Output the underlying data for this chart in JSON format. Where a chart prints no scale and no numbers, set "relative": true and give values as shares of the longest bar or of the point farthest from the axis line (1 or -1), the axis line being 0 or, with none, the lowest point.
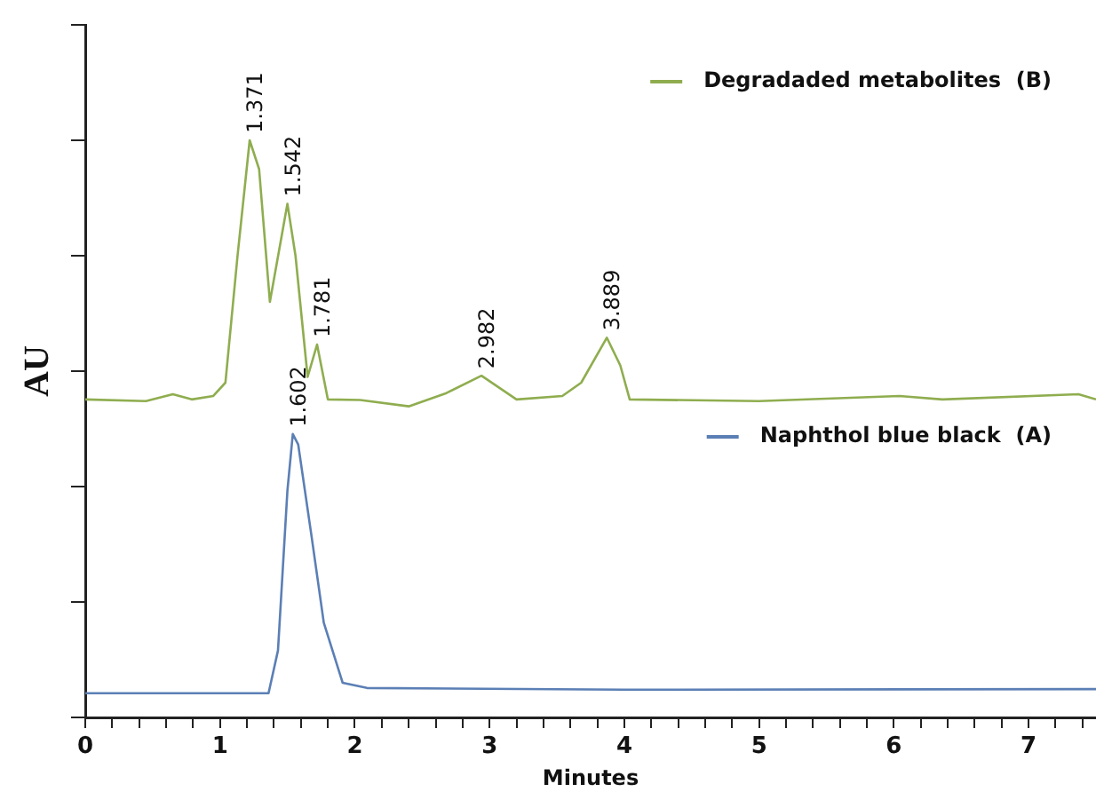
{
  "chart_data": {
    "type": "line",
    "relative": true,
    "xlabel": "Minutes",
    "ylabel": "AU",
    "xlim": [
      0,
      7.5
    ],
    "xticks": [
      0,
      {
        "value": 0.2,
        "label": null
      },
      {
        "value": 0.4,
        "label": null
      },
      {
        "value": 0.6,
        "label": null
      },
      {
        "value": 0.8,
        "label": null
      },
      1,
      {
        "value": 1.2,
        "label": null
      },
      {
        "value": 1.4,
        "label": null
      },
      {
        "value": 1.6,
        "label": null
      },
      {
        "value": 1.8,
        "label": null
      },
      2,
      {
        "value": 2.2,
        "label": null
      },
      {
        "value": 2.4,
        "label": null
      },
      {
        "value": 2.6,
        "label": null
      },
      {
        "value": 2.8,
        "label": null
      },
      3,
      {
        "value": 3.2,
        "label": null
      },
      {
        "value": 3.4,
        "label": null
      },
      {
        "value": 3.6,
        "label": null
      },
      {
        "value": 3.8,
        "label": null
      },
      4,
      {
        "value": 4.2,
        "label": null
      },
      {
        "value": 4.4,
        "label": null
      },
      {
        "value": 4.6,
        "label": null
      },
      {
        "value": 4.8,
        "label": null
      },
      5,
      {
        "value": 5.2,
        "label": null
      },
      {
        "value": 5.4,
        "label": null
      },
      {
        "value": 5.6,
        "label": null
      },
      {
        "value": 5.8,
        "label": null
      },
      6,
      {
        "value": 6.2,
        "label": null
      },
      {
        "value": 6.4,
        "label": null
      },
      {
        "value": 6.6,
        "label": null
      },
      {
        "value": 6.8,
        "label": null
      },
      7,
      {
        "value": 7.2,
        "label": null
      },
      {
        "value": 7.4,
        "label": null
      }
    ],
    "series": [
      {
        "name": "Degradaded metabolites  (B)",
        "color": "#8fad4f",
        "x": [
          0,
          0.45,
          0.65,
          0.79,
          0.95,
          1.04,
          1.13,
          1.22,
          1.29,
          1.37,
          1.5,
          1.56,
          1.65,
          1.72,
          1.8,
          2.04,
          2.4,
          2.68,
          2.94,
          3.2,
          3.54,
          3.68,
          3.87,
          3.97,
          4.04,
          5.0,
          6.04,
          6.36,
          7.37,
          7.5
        ],
        "values": [
          0.551,
          0.548,
          0.56,
          0.551,
          0.557,
          0.58,
          0.8,
          1.0,
          0.95,
          0.72,
          0.89,
          0.8,
          0.59,
          0.646,
          0.551,
          0.55,
          0.539,
          0.562,
          0.592,
          0.551,
          0.557,
          0.58,
          0.658,
          0.61,
          0.551,
          0.548,
          0.557,
          0.551,
          0.56,
          0.551
        ]
      },
      {
        "name": "Naphthol blue black  (A)",
        "color": "#5b7fb5",
        "x": [
          0,
          1.36,
          1.43,
          1.5,
          1.54,
          1.58,
          1.68,
          1.77,
          1.91,
          2.09,
          4.0,
          7.5
        ],
        "values": [
          0.042,
          0.042,
          0.116,
          0.393,
          0.491,
          0.473,
          0.3125,
          0.164,
          0.06,
          0.051,
          0.048,
          0.049
        ]
      }
    ],
    "annotations": [
      {
        "text": "1.371",
        "x": 1.22,
        "y": 1.0
      },
      {
        "text": "1.542",
        "x": 1.5,
        "y": 0.89
      },
      {
        "text": "1.781",
        "x": 1.72,
        "y": 0.646
      },
      {
        "text": "2.982",
        "x": 2.94,
        "y": 0.592
      },
      {
        "text": "3.889",
        "x": 3.87,
        "y": 0.658
      },
      {
        "text": "1.602",
        "x": 1.54,
        "y": 0.491
      }
    ],
    "legend": "top right",
    "marker": "none",
    "line_style": "solid",
    "grid": false
  }
}
